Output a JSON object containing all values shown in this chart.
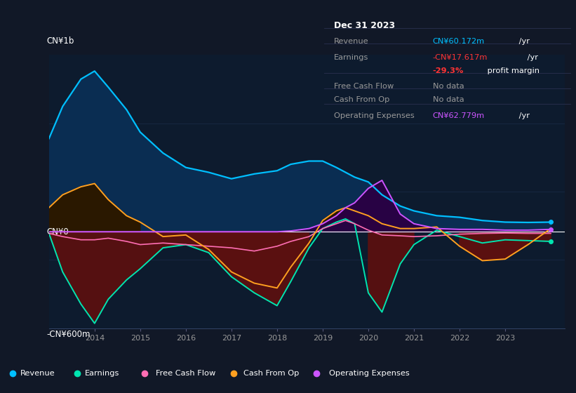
{
  "bg_color": "#111827",
  "plot_bg_color": "#0d1b2e",
  "grid_color": "#1e3050",
  "zero_line_color": "#ffffff",
  "ylim": [
    -600,
    1100
  ],
  "ylabel_top": "CN¥1b",
  "ylabel_bottom": "-CN¥600m",
  "ylabel_zero": "CN¥0",
  "years": [
    2013.0,
    2013.3,
    2013.7,
    2014.0,
    2014.3,
    2014.7,
    2015.0,
    2015.5,
    2016.0,
    2016.5,
    2017.0,
    2017.5,
    2018.0,
    2018.3,
    2018.7,
    2019.0,
    2019.3,
    2019.5,
    2019.7,
    2020.0,
    2020.3,
    2020.7,
    2021.0,
    2021.5,
    2022.0,
    2022.5,
    2023.0,
    2023.5,
    2024.0
  ],
  "revenue": [
    580,
    780,
    950,
    1000,
    900,
    760,
    620,
    490,
    400,
    370,
    330,
    360,
    380,
    420,
    440,
    440,
    400,
    370,
    340,
    310,
    230,
    160,
    130,
    100,
    90,
    70,
    60,
    58,
    60
  ],
  "earnings": [
    -10,
    -250,
    -450,
    -570,
    -420,
    -300,
    -230,
    -100,
    -80,
    -130,
    -280,
    -380,
    -460,
    -310,
    -100,
    20,
    60,
    80,
    50,
    -380,
    -500,
    -200,
    -80,
    10,
    -30,
    -70,
    -50,
    -55,
    -60
  ],
  "free_cash_flow": [
    -10,
    -30,
    -50,
    -50,
    -40,
    -60,
    -80,
    -70,
    -80,
    -90,
    -100,
    -120,
    -90,
    -60,
    -30,
    20,
    50,
    70,
    50,
    10,
    -20,
    -25,
    -30,
    -25,
    -15,
    -10,
    -8,
    -10,
    -10
  ],
  "cash_from_op": [
    150,
    230,
    280,
    300,
    200,
    100,
    60,
    -30,
    -20,
    -110,
    -250,
    -320,
    -350,
    -220,
    -70,
    70,
    130,
    150,
    130,
    100,
    50,
    20,
    20,
    30,
    -90,
    -180,
    -170,
    -80,
    20
  ],
  "operating_expenses": [
    0,
    0,
    0,
    0,
    0,
    0,
    0,
    0,
    0,
    0,
    0,
    0,
    0,
    5,
    20,
    50,
    100,
    150,
    180,
    270,
    320,
    110,
    50,
    20,
    15,
    15,
    10,
    10,
    15
  ],
  "revenue_color": "#00bfff",
  "earnings_color": "#00e5b0",
  "free_cash_flow_color": "#ff6eb4",
  "cash_from_op_color": "#ffa020",
  "operating_expenses_color": "#cc55ff",
  "revenue_fill": "#0a2d52",
  "cash_from_op_fill_pos": "#2a1e00",
  "dark_red_fill": "#5a1010",
  "teal_fill": "#003d30",
  "purple_fill": "#2a0044",
  "gray_fill": "#1a2a1a",
  "infobox_bg": "#0d1117",
  "infobox_border": "#2a3050",
  "legend_bg": "#111827",
  "legend_border": "#2a3050",
  "xticks": [
    2014,
    2015,
    2016,
    2017,
    2018,
    2019,
    2020,
    2021,
    2022,
    2023
  ],
  "infobox": {
    "title": "Dec 31 2023",
    "revenue_val": "CN¥60.172m",
    "revenue_color": "#00bfff",
    "earnings_val": "-CN¥17.617m",
    "earnings_color": "#ff3333",
    "margin_pct": "-29.3%",
    "margin_color": "#ff3333",
    "op_exp_val": "CN¥62.779m",
    "op_exp_color": "#cc55ff"
  },
  "legend_items": [
    {
      "label": "Revenue",
      "color": "#00bfff"
    },
    {
      "label": "Earnings",
      "color": "#00e5b0"
    },
    {
      "label": "Free Cash Flow",
      "color": "#ff6eb4"
    },
    {
      "label": "Cash From Op",
      "color": "#ffa020"
    },
    {
      "label": "Operating Expenses",
      "color": "#cc55ff"
    }
  ]
}
